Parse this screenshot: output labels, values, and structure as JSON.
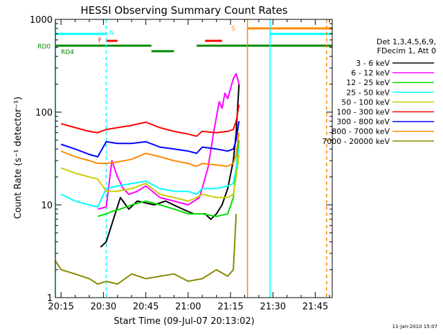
{
  "chart_data": {
    "type": "line",
    "title": "HESSI Observing Summary Count Rates",
    "xlabel": "Start Time (09-Jul-07 20:13:02)",
    "ylabel": "Count Rate (s⁻¹ detector⁻¹)",
    "y_scale": "log",
    "xlim": [
      "20:13:00",
      "21:51:00"
    ],
    "ylim": [
      1,
      1000
    ],
    "x_ticks": [
      "20:15",
      "20:30",
      "20:45",
      "21:00",
      "21:15",
      "21:30",
      "21:45"
    ],
    "y_ticks": [
      1,
      10,
      100,
      1000
    ],
    "grid": false,
    "legend_position": "right",
    "legend_header": [
      "Det 1,3,4,5,6,9,",
      "FDecim 1, Att 0"
    ],
    "series": [
      {
        "name": "3 - 6 keV",
        "color": "#000000",
        "x": [
          "20:29",
          "20:31",
          "20:36",
          "20:39",
          "20:42",
          "20:48",
          "20:52",
          "20:58",
          "21:02",
          "21:06",
          "21:08",
          "21:10",
          "21:12",
          "21:14",
          "21:16",
          "21:17",
          "21:18"
        ],
        "y": [
          3.5,
          4,
          12,
          9,
          11,
          10,
          11,
          9,
          8,
          8,
          7,
          8,
          10,
          15,
          30,
          60,
          200
        ]
      },
      {
        "name": "6 - 12 keV",
        "color": "#ff00ff",
        "x": [
          "20:28",
          "20:31",
          "20:33",
          "20:35",
          "20:37",
          "20:39",
          "20:42",
          "20:45",
          "20:50",
          "20:55",
          "21:00",
          "21:04",
          "21:07",
          "21:09",
          "21:11",
          "21:12",
          "21:13",
          "21:14",
          "21:15",
          "21:16",
          "21:17",
          "21:18"
        ],
        "y": [
          9,
          9.5,
          30,
          20,
          15,
          13,
          14,
          16,
          12,
          11,
          10,
          12,
          25,
          60,
          130,
          110,
          160,
          140,
          180,
          230,
          260,
          200
        ]
      },
      {
        "name": "12 - 25 keV",
        "color": "#00dd00",
        "x": [
          "20:28",
          "20:31",
          "20:33",
          "20:36",
          "20:40",
          "20:45",
          "20:50",
          "20:55",
          "21:00",
          "21:05",
          "21:10",
          "21:14",
          "21:16",
          "21:17",
          "21:18"
        ],
        "y": [
          7.5,
          8,
          8.5,
          9,
          10,
          11,
          10,
          9,
          8,
          8,
          7.5,
          8,
          12,
          25,
          50
        ]
      },
      {
        "name": "25 - 50 keV",
        "color": "#00ffff",
        "x": [
          "20:15",
          "20:20",
          "20:25",
          "20:28",
          "20:31",
          "20:35",
          "20:40",
          "20:45",
          "20:50",
          "20:55",
          "21:00",
          "21:03",
          "21:05",
          "21:10",
          "21:14",
          "21:16",
          "21:17",
          "21:18"
        ],
        "y": [
          13,
          11,
          10,
          9.5,
          15,
          16,
          17,
          18,
          15,
          14,
          14,
          13,
          15,
          15,
          16,
          17,
          25,
          40
        ]
      },
      {
        "name": "50 - 100 keV",
        "color": "#cccc00",
        "x": [
          "20:15",
          "20:20",
          "20:25",
          "20:28",
          "20:31",
          "20:35",
          "20:40",
          "20:45",
          "20:50",
          "20:55",
          "21:00",
          "21:03",
          "21:05",
          "21:10",
          "21:14",
          "21:16",
          "21:17",
          "21:18"
        ],
        "y": [
          25,
          22,
          20,
          19,
          14,
          14,
          15,
          17,
          13,
          12,
          11,
          12,
          13,
          12,
          12,
          13,
          20,
          35
        ]
      },
      {
        "name": "100 - 300 keV",
        "color": "#ff0000",
        "x": [
          "20:15",
          "20:20",
          "20:25",
          "20:28",
          "20:31",
          "20:35",
          "20:40",
          "20:45",
          "20:50",
          "20:55",
          "21:00",
          "21:03",
          "21:05",
          "21:10",
          "21:14",
          "21:16",
          "21:17",
          "21:18"
        ],
        "y": [
          75,
          68,
          62,
          60,
          65,
          68,
          72,
          78,
          68,
          62,
          58,
          55,
          62,
          60,
          62,
          65,
          80,
          120
        ]
      },
      {
        "name": "300 - 800 keV",
        "color": "#0000ff",
        "x": [
          "20:15",
          "20:20",
          "20:25",
          "20:28",
          "20:31",
          "20:35",
          "20:40",
          "20:45",
          "20:50",
          "20:55",
          "21:00",
          "21:03",
          "21:05",
          "21:10",
          "21:14",
          "21:16",
          "21:17",
          "21:18"
        ],
        "y": [
          45,
          40,
          35,
          33,
          48,
          46,
          46,
          48,
          42,
          40,
          38,
          36,
          42,
          40,
          38,
          40,
          50,
          80
        ]
      },
      {
        "name": "800 - 7000 keV",
        "color": "#ff8800",
        "x": [
          "20:15",
          "20:20",
          "20:25",
          "20:28",
          "20:31",
          "20:35",
          "20:40",
          "20:45",
          "20:50",
          "20:55",
          "21:00",
          "21:03",
          "21:05",
          "21:10",
          "21:14",
          "21:16",
          "21:17",
          "21:18"
        ],
        "y": [
          38,
          33,
          30,
          28,
          28,
          29,
          31,
          36,
          33,
          30,
          28,
          26,
          28,
          27,
          26,
          28,
          35,
          60
        ]
      },
      {
        "name": "7000 - 20000 keV",
        "color": "#888800",
        "x": [
          "20:13",
          "20:15",
          "20:20",
          "20:25",
          "20:28",
          "20:31",
          "20:35",
          "20:40",
          "20:45",
          "20:50",
          "20:55",
          "21:00",
          "21:05",
          "21:10",
          "21:14",
          "21:16",
          "21:17"
        ],
        "y": [
          2.5,
          2,
          1.8,
          1.6,
          1.4,
          1.5,
          1.4,
          1.8,
          1.6,
          1.7,
          1.8,
          1.5,
          1.6,
          2,
          1.7,
          2,
          8
        ]
      }
    ],
    "flag_bars": [
      {
        "label": "N",
        "color": "#00ffff",
        "intervals": [
          [
            "20:13",
            "20:31"
          ],
          [
            "21:29",
            "21:51"
          ]
        ]
      },
      {
        "label": "F",
        "color": "#ff0000",
        "intervals": [
          [
            "20:31",
            "20:35"
          ],
          [
            "21:06",
            "21:12"
          ]
        ]
      },
      {
        "label": "S",
        "color": "#ff8800",
        "intervals": [
          [
            "21:21",
            "21:51"
          ]
        ]
      },
      {
        "label": "RD0",
        "color": "#008800",
        "intervals": [
          [
            "20:13",
            "20:47"
          ],
          [
            "21:03",
            "21:51"
          ]
        ]
      },
      {
        "label": "RD4",
        "color": "#008800",
        "intervals": [
          [
            "20:47",
            "20:55"
          ]
        ]
      }
    ],
    "vertical_markers": [
      {
        "x": "20:13",
        "color": "#00ffff",
        "style": "solid"
      },
      {
        "x": "20:31",
        "color": "#00ffff",
        "style": "dashed"
      },
      {
        "x": "21:21",
        "color": "#ff8800",
        "style": "solid"
      },
      {
        "x": "21:29",
        "color": "#00ffff",
        "style": "solid"
      },
      {
        "x": "21:49",
        "color": "#ff8800",
        "style": "dashed"
      }
    ],
    "footer_date": "11-Jan-2010 15:07"
  }
}
